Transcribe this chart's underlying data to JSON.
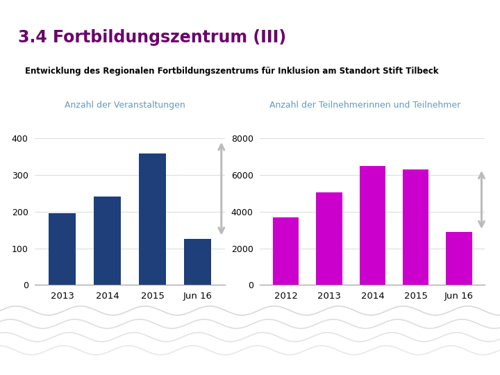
{
  "title": "3.4 Fortbildungszentrum (III)",
  "subtitle": "Entwicklung des Regionalen Fortbildungszentrums für Inklusion am Standort Stift Tilbeck",
  "chart1_title": "Anzahl der Veranstaltungen",
  "chart1_categories": [
    "2013",
    "2014",
    "2015",
    "Jun 16"
  ],
  "chart1_values": [
    195,
    242,
    358,
    125
  ],
  "chart1_color": "#1F3F7A",
  "chart1_ylim": [
    0,
    450
  ],
  "chart1_yticks": [
    0,
    100,
    200,
    300,
    400
  ],
  "chart2_title": "Anzahl der Teilnehmerinnen und Teilnehmer",
  "chart2_categories": [
    "2012",
    "2013",
    "2014",
    "2015",
    "Jun 16"
  ],
  "chart2_values": [
    3700,
    5050,
    6500,
    6300,
    2900
  ],
  "chart2_color": "#CC00CC",
  "chart2_ylim": [
    0,
    9000
  ],
  "chart2_yticks": [
    0,
    2000,
    4000,
    6000,
    8000
  ],
  "bg_color": "#FFFFFF",
  "title_color": "#6B006B",
  "subtitle_color": "#000000",
  "chart_title_color": "#6699BB",
  "top_bar_color": "#7B0057",
  "grid_color": "#DDDDDD",
  "arrow_color": "#BBBBBB",
  "wave_color": "#CCCCCC",
  "bottom_nav_color": "#888888"
}
